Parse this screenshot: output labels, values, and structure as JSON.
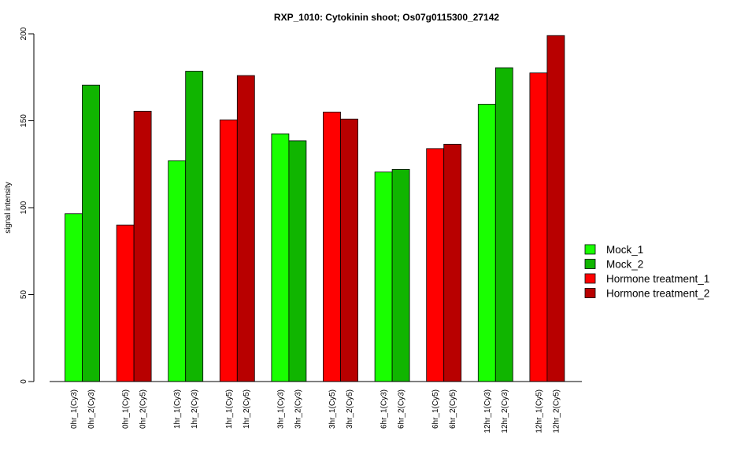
{
  "chart_data": {
    "type": "bar",
    "title": "RXP_1010: Cytokinin shoot; Os07g0115300_27142",
    "xlabel": "",
    "ylabel": "signal intensity",
    "ylim": [
      0,
      200
    ],
    "yticks": [
      0,
      50,
      100,
      150,
      200
    ],
    "grid": false,
    "legend_position": "right",
    "bars": [
      {
        "label": "0hr_1(Cy3)",
        "value": 96.5,
        "series": "Mock_1"
      },
      {
        "label": "0hr_2(Cy3)",
        "value": 170.5,
        "series": "Mock_2"
      },
      {
        "label": "0hr_1(Cy5)",
        "value": 90,
        "series": "Hormone treatment_1"
      },
      {
        "label": "0hr_2(Cy5)",
        "value": 155.5,
        "series": "Hormone treatment_2"
      },
      {
        "label": "1hr_1(Cy3)",
        "value": 127,
        "series": "Mock_1"
      },
      {
        "label": "1hr_2(Cy3)",
        "value": 178.5,
        "series": "Mock_2"
      },
      {
        "label": "1hr_1(Cy5)",
        "value": 150.5,
        "series": "Hormone treatment_1"
      },
      {
        "label": "1hr_2(Cy5)",
        "value": 176,
        "series": "Hormone treatment_2"
      },
      {
        "label": "3hr_1(Cy3)",
        "value": 142.5,
        "series": "Mock_1"
      },
      {
        "label": "3hr_2(Cy3)",
        "value": 138.5,
        "series": "Mock_2"
      },
      {
        "label": "3hr_1(Cy5)",
        "value": 155,
        "series": "Hormone treatment_1"
      },
      {
        "label": "3hr_2(Cy5)",
        "value": 151,
        "series": "Hormone treatment_2"
      },
      {
        "label": "6hr_1(Cy3)",
        "value": 120.5,
        "series": "Mock_1"
      },
      {
        "label": "6hr_2(Cy3)",
        "value": 122,
        "series": "Mock_2"
      },
      {
        "label": "6hr_1(Cy5)",
        "value": 134,
        "series": "Hormone treatment_1"
      },
      {
        "label": "6hr_2(Cy5)",
        "value": 136.5,
        "series": "Hormone treatment_2"
      },
      {
        "label": "12hr_1(Cy3)",
        "value": 159.5,
        "series": "Mock_1"
      },
      {
        "label": "12hr_2(Cy3)",
        "value": 180.5,
        "series": "Mock_2"
      },
      {
        "label": "12hr_1(Cy5)",
        "value": 177.5,
        "series": "Hormone treatment_1"
      },
      {
        "label": "12hr_2(Cy5)",
        "value": 199,
        "series": "Hormone treatment_2"
      }
    ],
    "legend": [
      {
        "name": "Mock_1",
        "color": "#19ff00"
      },
      {
        "name": "Mock_2",
        "color": "#10b500"
      },
      {
        "name": "Hormone treatment_1",
        "color": "#ff0000"
      },
      {
        "name": "Hormone treatment_2",
        "color": "#b80000"
      }
    ]
  }
}
